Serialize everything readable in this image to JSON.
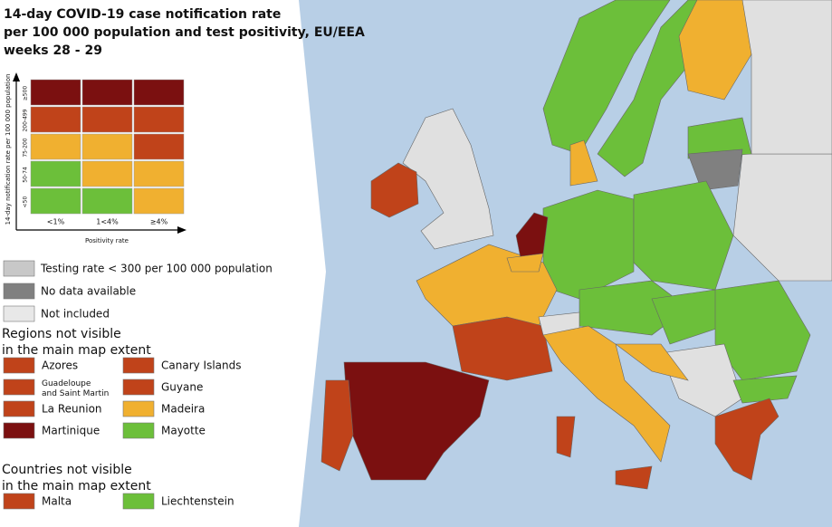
{
  "title": [
    "14-day COVID-19 case notification rate",
    "per 100 000 population and test positivity, EU/EEA",
    "weeks 28 - 29"
  ],
  "matrix": {
    "y_axis_label": "14-day notification rate per 100 000 population",
    "x_axis_label": "Positivity rate",
    "row_labels": [
      "≥500",
      "200-499",
      "75-200",
      "50-74",
      "<50"
    ],
    "col_labels": [
      "<1%",
      "1<4%",
      "≥4%"
    ],
    "cells": [
      [
        "#7b1010",
        "#7b1010",
        "#7b1010"
      ],
      [
        "#c0431a",
        "#c0431a",
        "#c0431a"
      ],
      [
        "#f0b030",
        "#f0b030",
        "#c0431a"
      ],
      [
        "#6cbf3a",
        "#f0b030",
        "#f0b030"
      ],
      [
        "#6cbf3a",
        "#6cbf3a",
        "#f0b030"
      ]
    ]
  },
  "status_legend": [
    {
      "label": "Testing rate < 300 per 100 000 population",
      "color": "#c8c8c8"
    },
    {
      "label": "No data available",
      "color": "#808080"
    },
    {
      "label": "Not included",
      "color": "#e8e8e8"
    }
  ],
  "regions": {
    "heading": [
      "Regions not visible",
      "in the main map extent"
    ],
    "items": [
      {
        "label": "Azores",
        "color": "#c0431a"
      },
      {
        "label": "Canary Islands",
        "color": "#c0431a"
      },
      {
        "label": "Guadeloupe\nand Saint Martin",
        "color": "#c0431a"
      },
      {
        "label": "Guyane",
        "color": "#c0431a"
      },
      {
        "label": "La Reunion",
        "color": "#c0431a"
      },
      {
        "label": "Madeira",
        "color": "#f0b030"
      },
      {
        "label": "Martinique",
        "color": "#7b1010"
      },
      {
        "label": "Mayotte",
        "color": "#6cbf3a"
      }
    ]
  },
  "countries": {
    "heading": [
      "Countries not visible",
      "in the main map extent"
    ],
    "items": [
      {
        "label": "Malta",
        "color": "#c0431a"
      },
      {
        "label": "Liechtenstein",
        "color": "#6cbf3a"
      }
    ]
  }
}
